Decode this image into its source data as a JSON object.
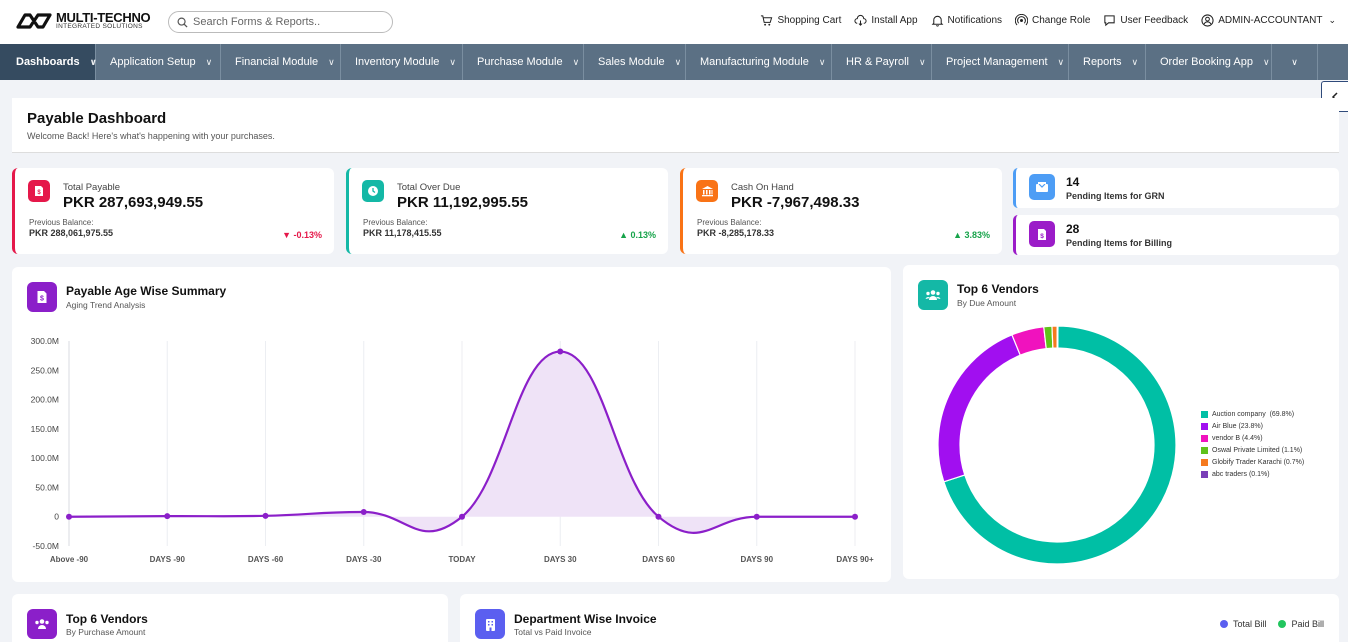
{
  "header": {
    "logo_main": "MULTI-TECHNO",
    "logo_sub": "INTEGRATED SOLUTIONS",
    "search_placeholder": "Search Forms & Reports..",
    "actions": {
      "cart": "Shopping Cart",
      "install": "Install App",
      "notifications": "Notifications",
      "role": "Change Role",
      "feedback": "User Feedback",
      "user": "ADMIN-ACCOUNTANT"
    }
  },
  "nav": {
    "items": [
      "Dashboards",
      "Application Setup",
      "Financial Module",
      "Inventory Module",
      "Purchase Module",
      "Sales Module",
      "Manufacturing Module",
      "HR & Payroll",
      "Project Management",
      "Reports",
      "Order Booking App"
    ]
  },
  "page": {
    "title": "Payable Dashboard",
    "subtitle": "Welcome Back! Here's what's happening with your purchases."
  },
  "stats": [
    {
      "label": "Total Payable",
      "value": "PKR 287,693,949.55",
      "prev_label": "Previous Balance:",
      "prev_value": "PKR 288,061,975.55",
      "delta": "▼ -0.13%",
      "color": "#e5184a",
      "delta_color": "#e5184a"
    },
    {
      "label": "Total Over Due",
      "value": "PKR 11,192,995.55",
      "prev_label": "Previous Balance:",
      "prev_value": "PKR 11,178,415.55",
      "delta": "▲ 0.13%",
      "color": "#14b8a6",
      "delta_color": "#16a34a"
    },
    {
      "label": "Cash On Hand",
      "value": "PKR -7,967,498.33",
      "prev_label": "Previous Balance:",
      "prev_value": "PKR -8,285,178.33",
      "delta": "▲ 3.83%",
      "color": "#f97316",
      "delta_color": "#16a34a"
    }
  ],
  "pending": [
    {
      "count": "14",
      "label": "Pending Items for GRN",
      "color": "#4d9df5"
    },
    {
      "count": "28",
      "label": "Pending Items for Billing",
      "color": "#9b1cc8"
    }
  ],
  "age_panel": {
    "title": "Payable Age Wise Summary",
    "subtitle": "Aging Trend Analysis"
  },
  "vendors_due_panel": {
    "title": "Top 6 Vendors",
    "subtitle": "By Due Amount"
  },
  "vendors_purchase_panel": {
    "title": "Top 6 Vendors",
    "subtitle": "By Purchase Amount"
  },
  "dept_panel": {
    "title": "Department Wise Invoice",
    "subtitle": "Total vs Paid Invoice",
    "legend": [
      "Total Bill",
      "Paid Bill"
    ],
    "legend_colors": [
      "#5b5ff0",
      "#22c55e"
    ]
  },
  "chart_data": [
    {
      "type": "area",
      "categories": [
        "Above -90",
        "DAYS -90",
        "DAYS -60",
        "DAYS -30",
        "TODAY",
        "DAYS 30",
        "DAYS 60",
        "DAYS 90",
        "DAYS 90+"
      ],
      "values": [
        0,
        1000000,
        1500000,
        8000000,
        0,
        282000000,
        0,
        0,
        0
      ],
      "y_ticks": [
        "300.0M",
        "250.0M",
        "200.0M",
        "150.0M",
        "100.0M",
        "50.0M",
        "0",
        "-50.0M"
      ],
      "ylim": [
        -50000000,
        300000000
      ],
      "color": "#8b1fc9",
      "fill": "#efe3f7",
      "grid": "vertical"
    },
    {
      "type": "pie",
      "style": "donut",
      "labels": [
        "Auction company  (69.8%)",
        "Air Blue (23.8%)",
        "vendor B (4.4%)",
        "Oswal Private Limited (1.1%)",
        "Globify Trader Karachi (0.7%)",
        "abc traders (0.1%)"
      ],
      "values": [
        69.8,
        23.8,
        4.4,
        1.1,
        0.7,
        0.1
      ],
      "colors": [
        "#00bfa5",
        "#a10ff0",
        "#f012be",
        "#5fc21a",
        "#f57a1f",
        "#7a3fb8"
      ],
      "legend": "right"
    }
  ]
}
